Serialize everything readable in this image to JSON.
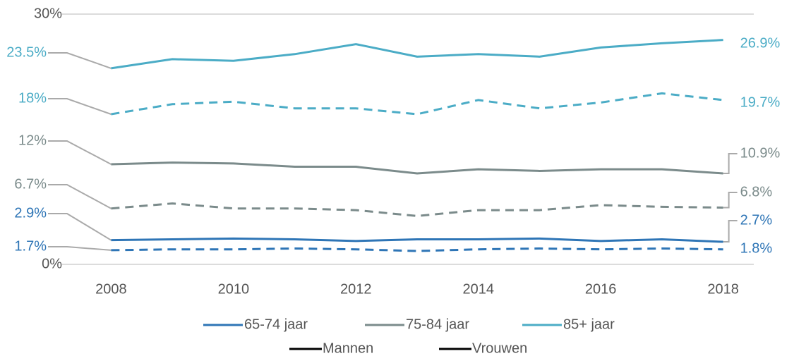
{
  "chart_data": {
    "type": "line",
    "x": [
      2008,
      2009,
      2010,
      2011,
      2012,
      2013,
      2014,
      2015,
      2016,
      2017,
      2018
    ],
    "xlim": [
      2007.2,
      2018.5
    ],
    "xticks": [
      2008,
      2010,
      2012,
      2014,
      2016,
      2018
    ],
    "ylim": [
      0,
      30
    ],
    "yticks": [
      {
        "value": 0,
        "label": "0%"
      },
      {
        "value": 30,
        "label": "30%"
      }
    ],
    "grid": true,
    "line_styles": [
      {
        "name": "Mannen",
        "dash": "solid"
      },
      {
        "name": "Vrouwen",
        "dash": "dashed"
      }
    ],
    "series": [
      {
        "name": "65-74 jaar",
        "color": "#2e75b6",
        "lines": [
          {
            "values": [
              2.9,
              3.0,
              3.1,
              3.0,
              2.8,
              3.0,
              3.0,
              3.1,
              2.8,
              3.0,
              2.7
            ],
            "value_labels": [
              "2.9%",
              null,
              null,
              null,
              null,
              null,
              null,
              null,
              null,
              null,
              "2.7%"
            ]
          },
          {
            "values": [
              1.7,
              1.8,
              1.8,
              1.9,
              1.8,
              1.6,
              1.8,
              1.9,
              1.8,
              1.9,
              1.8
            ],
            "value_labels": [
              "1.7%",
              null,
              null,
              null,
              null,
              null,
              null,
              null,
              null,
              null,
              "1.8%"
            ]
          }
        ]
      },
      {
        "name": "75-84 jaar",
        "color": "#7b8b8b",
        "lines": [
          {
            "values": [
              12.0,
              12.2,
              12.1,
              11.7,
              11.7,
              10.9,
              11.4,
              11.2,
              11.4,
              11.4,
              10.9
            ],
            "value_labels": [
              "12%",
              null,
              null,
              null,
              null,
              null,
              null,
              null,
              null,
              null,
              "10.9%"
            ]
          },
          {
            "values": [
              6.7,
              7.3,
              6.7,
              6.7,
              6.5,
              5.8,
              6.5,
              6.5,
              7.1,
              6.9,
              6.8
            ],
            "value_labels": [
              "6.7%",
              null,
              null,
              null,
              null,
              null,
              null,
              null,
              null,
              null,
              "6.8%"
            ]
          }
        ]
      },
      {
        "name": "85+ jaar",
        "color": "#4bacc6",
        "lines": [
          {
            "values": [
              23.5,
              24.6,
              24.4,
              25.2,
              26.4,
              24.9,
              25.2,
              24.9,
              26.0,
              26.5,
              26.9
            ],
            "value_labels": [
              "23.5%",
              null,
              null,
              null,
              null,
              null,
              null,
              null,
              null,
              null,
              "26.9%"
            ]
          },
          {
            "values": [
              18,
              19.2,
              19.5,
              18.7,
              18.7,
              18.0,
              19.7,
              18.7,
              19.4,
              20.5,
              19.7
            ],
            "value_labels": [
              "18%",
              null,
              null,
              null,
              null,
              null,
              null,
              null,
              null,
              null,
              "19.7%"
            ]
          }
        ]
      }
    ]
  }
}
